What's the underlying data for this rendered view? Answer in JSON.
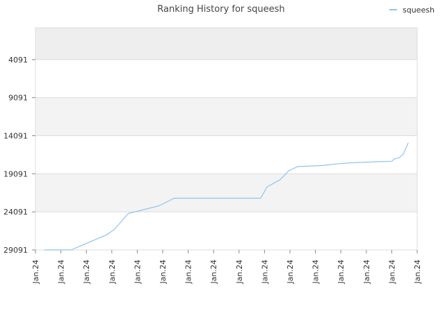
{
  "chart_data": {
    "type": "line",
    "title": "Ranking History for squeesh",
    "xlabel": "",
    "ylabel": "",
    "y_inverted": true,
    "ylim": [
      29091,
      -91
    ],
    "y_ticks": [
      4091,
      9091,
      14091,
      19091,
      24091,
      29091
    ],
    "y_tick_labels": [
      "4091",
      "9091",
      "14091",
      "19091",
      "24091",
      "29091"
    ],
    "x_tick_labels": [
      "Jan.24",
      "Jan.24",
      "Jan.24",
      "Jan.24",
      "Jan.24",
      "Jan.24",
      "Jan.24",
      "Jan.24",
      "Jan.24",
      "Jan.24",
      "Jan.24",
      "Jan.24",
      "Jan.24",
      "Jan.24",
      "Jan.24",
      "Jan.24"
    ],
    "grid": true,
    "alternating_band_colors": [
      "#eeeeee",
      "#ffffff",
      "#f3f3f3",
      "#ffffff",
      "#f3f3f3",
      "#ffffff"
    ],
    "legend_position": "top-right",
    "series": [
      {
        "name": "squeesh",
        "color": "#8ec4ef",
        "x": [
          0.35,
          1.35,
          1.4,
          2.8,
          3.1,
          3.65,
          4.25,
          4.85,
          5.45,
          7.0,
          8.0,
          8.85,
          9.1,
          9.6,
          9.75,
          9.95,
          10.3,
          11.3,
          11.8,
          12.4,
          13.5,
          14.0,
          14.1,
          14.3,
          14.45,
          14.55,
          14.65
        ],
        "values": [
          29091,
          29091,
          29091,
          27100,
          26400,
          24300,
          23800,
          23300,
          22300,
          22300,
          22300,
          22300,
          20800,
          19900,
          19400,
          18700,
          18150,
          18000,
          17800,
          17650,
          17500,
          17450,
          17150,
          16950,
          16500,
          15800,
          15000
        ]
      }
    ]
  }
}
